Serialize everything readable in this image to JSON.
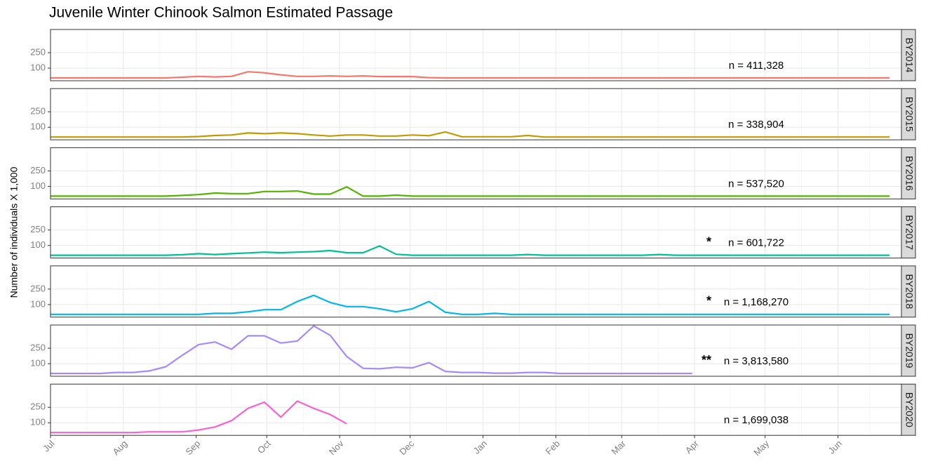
{
  "title": "Juvenile Winter Chinook Salmon Estimated Passage",
  "ylabel": "Number of individuals X 1,000",
  "x_axis": {
    "xlim": [
      0,
      362
    ],
    "xticks": [
      {
        "value": 0,
        "label": "Jul"
      },
      {
        "value": 31,
        "label": "Aug"
      },
      {
        "value": 62,
        "label": "Sep"
      },
      {
        "value": 92,
        "label": "Oct"
      },
      {
        "value": 123,
        "label": "Nov"
      },
      {
        "value": 153,
        "label": "Dec"
      },
      {
        "value": 184,
        "label": "Jan"
      },
      {
        "value": 215,
        "label": "Feb"
      },
      {
        "value": 243,
        "label": "Mar"
      },
      {
        "value": 274,
        "label": "Apr"
      },
      {
        "value": 304,
        "label": "May"
      },
      {
        "value": 335,
        "label": "Jun"
      }
    ]
  },
  "chart_data": [
    {
      "type": "line",
      "strip": "BY2014",
      "annotation": "n =  411,328",
      "color": "#F8766D",
      "ylim": [
        -22,
        475
      ],
      "yticks": [
        100,
        250
      ],
      "x": [
        0,
        7,
        14,
        21,
        28,
        35,
        42,
        49,
        56,
        63,
        70,
        77,
        84,
        91,
        98,
        105,
        112,
        119,
        126,
        133,
        140,
        147,
        154,
        161,
        168,
        175,
        182,
        189,
        196,
        203,
        210,
        217,
        224,
        231,
        238,
        245,
        252,
        259,
        266,
        273,
        280,
        287,
        294,
        301,
        308,
        315,
        322,
        329,
        336,
        343,
        350,
        357
      ],
      "values": [
        5,
        5,
        5,
        5,
        5,
        5,
        5,
        5,
        12,
        20,
        15,
        20,
        65,
        55,
        35,
        20,
        20,
        25,
        20,
        25,
        18,
        18,
        18,
        8,
        5,
        5,
        5,
        5,
        5,
        5,
        5,
        5,
        5,
        5,
        5,
        5,
        5,
        5,
        5,
        5,
        5,
        5,
        5,
        5,
        5,
        5,
        5,
        5,
        5,
        5,
        5,
        5
      ]
    },
    {
      "type": "line",
      "strip": "BY2015",
      "annotation": "n =  338,904",
      "color": "#C49A00",
      "ylim": [
        -22,
        475
      ],
      "yticks": [
        100,
        250
      ],
      "x": [
        0,
        7,
        14,
        21,
        28,
        35,
        42,
        49,
        56,
        63,
        70,
        77,
        84,
        91,
        98,
        105,
        112,
        119,
        126,
        133,
        140,
        147,
        154,
        161,
        168,
        175,
        182,
        189,
        196,
        203,
        210,
        217,
        224,
        231,
        238,
        245,
        252,
        259,
        266,
        273,
        280,
        287,
        294,
        301,
        308,
        315,
        322,
        329,
        336,
        343,
        350,
        357
      ],
      "values": [
        5,
        5,
        5,
        5,
        5,
        5,
        5,
        5,
        5,
        10,
        20,
        25,
        45,
        38,
        45,
        38,
        25,
        15,
        25,
        25,
        15,
        15,
        25,
        18,
        55,
        8,
        8,
        8,
        8,
        20,
        5,
        5,
        5,
        5,
        5,
        5,
        5,
        5,
        5,
        5,
        5,
        5,
        5,
        5,
        5,
        5,
        5,
        5,
        5,
        5,
        5,
        5
      ]
    },
    {
      "type": "line",
      "strip": "BY2016",
      "annotation": "n =  537,520",
      "color": "#53B400",
      "ylim": [
        -22,
        475
      ],
      "yticks": [
        100,
        250
      ],
      "x": [
        0,
        7,
        14,
        21,
        28,
        35,
        42,
        49,
        56,
        63,
        70,
        77,
        84,
        91,
        98,
        105,
        112,
        119,
        126,
        133,
        140,
        147,
        154,
        161,
        168,
        175,
        182,
        189,
        196,
        203,
        210,
        217,
        224,
        231,
        238,
        245,
        252,
        259,
        266,
        273,
        280,
        287,
        294,
        301,
        308,
        315,
        322,
        329,
        336,
        343,
        350,
        357
      ],
      "values": [
        5,
        5,
        5,
        5,
        5,
        5,
        5,
        5,
        12,
        20,
        35,
        30,
        30,
        50,
        50,
        55,
        25,
        25,
        95,
        5,
        5,
        15,
        5,
        5,
        5,
        5,
        5,
        5,
        5,
        5,
        5,
        5,
        5,
        5,
        5,
        5,
        5,
        5,
        5,
        5,
        5,
        5,
        5,
        5,
        5,
        5,
        5,
        5,
        5,
        5,
        5,
        5
      ]
    },
    {
      "type": "line",
      "strip": "BY2017",
      "annotation": "n =  601,722",
      "flag": "*",
      "color": "#00C094",
      "ylim": [
        -22,
        475
      ],
      "yticks": [
        100,
        250
      ],
      "x": [
        0,
        7,
        14,
        21,
        28,
        35,
        42,
        49,
        56,
        63,
        70,
        77,
        84,
        91,
        98,
        105,
        112,
        119,
        126,
        133,
        140,
        147,
        154,
        161,
        168,
        175,
        182,
        189,
        196,
        203,
        210,
        217,
        224,
        231,
        238,
        245,
        252,
        259,
        266,
        273,
        280,
        287,
        294,
        301,
        308,
        315,
        322,
        329,
        336,
        343,
        350,
        357
      ],
      "values": [
        5,
        5,
        5,
        5,
        5,
        5,
        5,
        5,
        10,
        20,
        12,
        20,
        28,
        35,
        30,
        35,
        40,
        50,
        30,
        30,
        95,
        15,
        5,
        5,
        5,
        5,
        5,
        5,
        5,
        12,
        5,
        5,
        5,
        5,
        5,
        5,
        5,
        12,
        5,
        5,
        5,
        5,
        5,
        5,
        5,
        5,
        5,
        5,
        5,
        5,
        5,
        5
      ]
    },
    {
      "type": "line",
      "strip": "BY2018",
      "annotation": "n =  1,168,270",
      "flag": "*",
      "color": "#00B6EB",
      "ylim": [
        -22,
        475
      ],
      "yticks": [
        100,
        250
      ],
      "x": [
        0,
        7,
        14,
        21,
        28,
        35,
        42,
        49,
        56,
        63,
        70,
        77,
        84,
        91,
        98,
        105,
        112,
        119,
        126,
        133,
        140,
        147,
        154,
        161,
        168,
        175,
        182,
        189,
        196,
        203,
        210,
        217,
        224,
        231,
        238,
        245,
        252,
        259,
        266,
        273,
        280,
        287,
        294,
        301,
        308,
        315,
        322,
        329,
        336,
        343,
        350,
        357
      ],
      "values": [
        5,
        5,
        5,
        5,
        5,
        5,
        5,
        5,
        5,
        5,
        15,
        15,
        30,
        50,
        50,
        130,
        190,
        120,
        80,
        80,
        60,
        30,
        60,
        130,
        25,
        5,
        5,
        15,
        5,
        5,
        5,
        5,
        5,
        5,
        5,
        5,
        5,
        5,
        5,
        5,
        5,
        5,
        5,
        5,
        5,
        5,
        5,
        5,
        5,
        5,
        5,
        5
      ]
    },
    {
      "type": "line",
      "strip": "BY2019",
      "annotation": "n =  3,813,580",
      "flag": "**",
      "color": "#A58AFF",
      "ylim": [
        -22,
        475
      ],
      "yticks": [
        100,
        250
      ],
      "x": [
        0,
        7,
        14,
        21,
        28,
        35,
        42,
        49,
        56,
        63,
        70,
        77,
        84,
        91,
        98,
        105,
        112,
        119,
        126,
        133,
        140,
        147,
        154,
        161,
        168,
        175,
        182,
        189,
        196,
        203,
        210,
        217,
        224,
        231,
        238,
        245,
        252,
        259,
        266,
        273
      ],
      "values": [
        5,
        5,
        5,
        5,
        15,
        15,
        30,
        70,
        180,
        285,
        310,
        240,
        370,
        370,
        300,
        320,
        466,
        375,
        170,
        55,
        50,
        65,
        60,
        110,
        25,
        15,
        15,
        8,
        8,
        15,
        15,
        5,
        5,
        5,
        5,
        5,
        5,
        5,
        5,
        5
      ]
    },
    {
      "type": "line",
      "strip": "BY2020",
      "annotation": "n =  1,699,038",
      "color": "#FB61D7",
      "ylim": [
        -22,
        475
      ],
      "yticks": [
        100,
        250
      ],
      "x": [
        0,
        7,
        14,
        21,
        28,
        35,
        42,
        49,
        56,
        63,
        70,
        77,
        84,
        91,
        98,
        105,
        112,
        119,
        126
      ],
      "values": [
        5,
        5,
        5,
        5,
        5,
        5,
        12,
        12,
        12,
        30,
        60,
        120,
        240,
        300,
        155,
        310,
        240,
        180,
        90
      ]
    }
  ]
}
